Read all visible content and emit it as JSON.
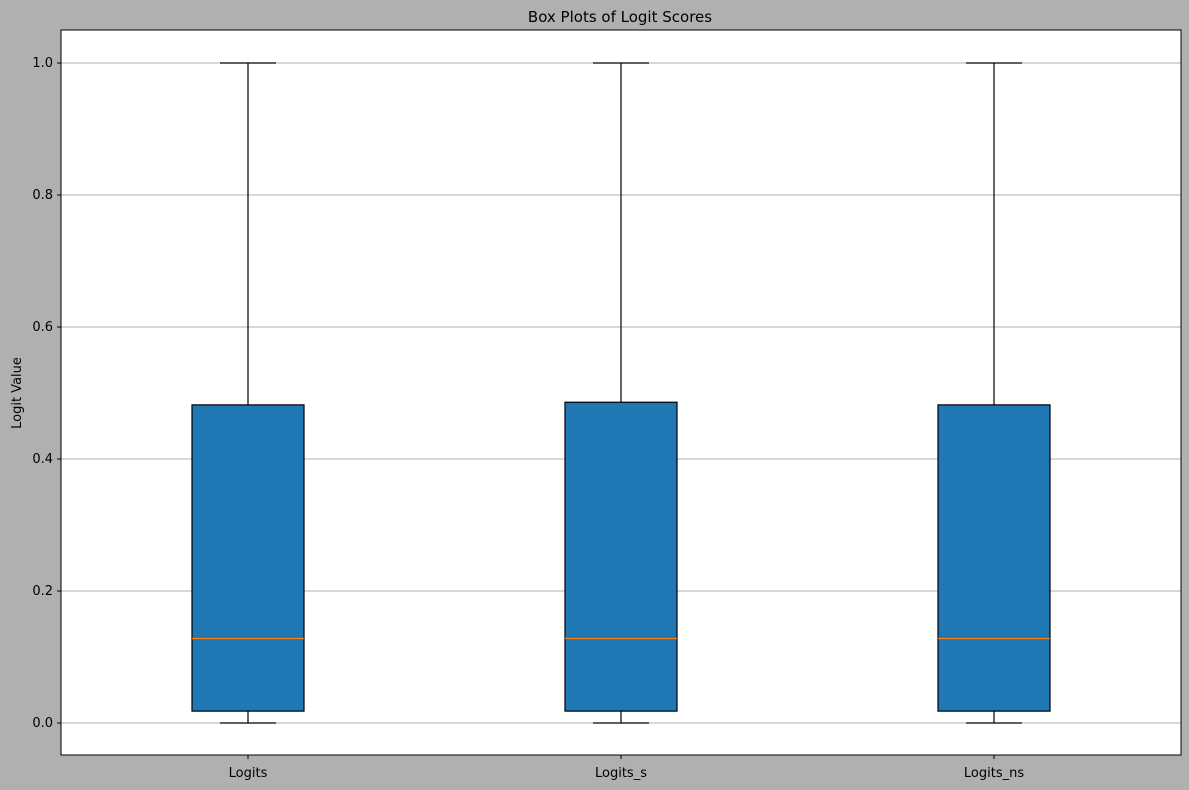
{
  "chart_data": {
    "type": "box",
    "title": "Box Plots of Logit Scores",
    "xlabel": "",
    "ylabel": "Logit Value",
    "categories": [
      "Logits",
      "Logits_s",
      "Logits_ns"
    ],
    "boxes": [
      {
        "min": 0.0,
        "q1": 0.018,
        "median": 0.128,
        "q3": 0.482,
        "max": 1.0
      },
      {
        "min": 0.0,
        "q1": 0.018,
        "median": 0.128,
        "q3": 0.486,
        "max": 1.0
      },
      {
        "min": 0.0,
        "q1": 0.018,
        "median": 0.128,
        "q3": 0.482,
        "max": 1.0
      }
    ],
    "ylim": [
      -0.05,
      1.05
    ],
    "yticks": [
      "0.0",
      "0.2",
      "0.4",
      "0.6",
      "0.8",
      "1.0"
    ],
    "grid": "horizontal",
    "colors": {
      "box_fill": "#1f77b4",
      "median": "#ff7f0e",
      "grid": "#b0b0b0",
      "figure_background": "#b0b0b0",
      "axes_background": "#ffffff"
    }
  }
}
